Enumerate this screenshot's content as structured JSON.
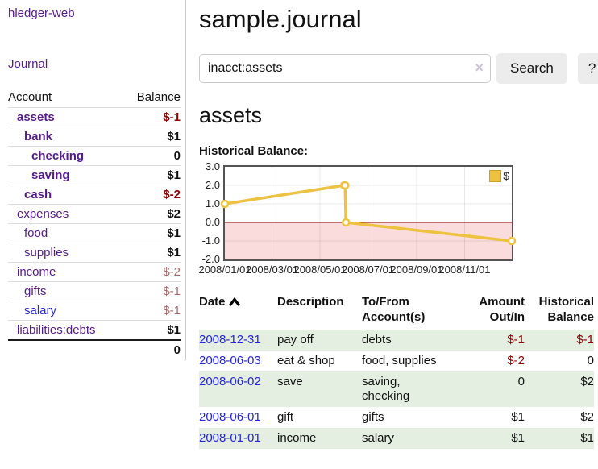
{
  "app": {
    "title": "hledger-web",
    "nav_journal": "Journal"
  },
  "sidebar": {
    "header": {
      "account": "Account",
      "balance": "Balance"
    },
    "accounts": [
      {
        "name": "assets",
        "indent": 1,
        "bold": true,
        "balance": "$-1",
        "balance_style": "negative-strong"
      },
      {
        "name": "bank",
        "indent": 2,
        "bold": true,
        "balance": "$1",
        "balance_style": "normal"
      },
      {
        "name": "checking",
        "indent": 3,
        "bold": true,
        "balance": "0",
        "balance_style": "normal"
      },
      {
        "name": "saving",
        "indent": 3,
        "bold": true,
        "balance": "$1",
        "balance_style": "normal"
      },
      {
        "name": "cash",
        "indent": 2,
        "bold": true,
        "balance": "$-2",
        "balance_style": "negative-strong"
      },
      {
        "name": "expenses",
        "indent": 1,
        "bold": false,
        "balance": "$2",
        "balance_style": "normal"
      },
      {
        "name": "food",
        "indent": 2,
        "bold": false,
        "balance": "$1",
        "balance_style": "normal"
      },
      {
        "name": "supplies",
        "indent": 2,
        "bold": false,
        "balance": "$1",
        "balance_style": "normal"
      },
      {
        "name": "income",
        "indent": 1,
        "bold": false,
        "balance": "$-2",
        "balance_style": "negative-muted"
      },
      {
        "name": "gifts",
        "indent": 2,
        "bold": false,
        "balance": "$-1",
        "balance_style": "negative-muted"
      },
      {
        "name": "salary",
        "indent": 2,
        "bold": false,
        "balance": "$-1",
        "balance_style": "negative-muted",
        "link_color": "blue"
      },
      {
        "name": "liabilities:debts",
        "indent": 1,
        "bold": false,
        "balance": "$1",
        "balance_style": "normal"
      }
    ],
    "total": "0"
  },
  "main": {
    "title": "sample.journal",
    "search": {
      "value": "inacct:assets",
      "clear_icon": "×",
      "button": "Search",
      "help_button": "?"
    },
    "account_heading": "assets",
    "chart_label": "Historical Balance:"
  },
  "chart_data": {
    "type": "line",
    "title": "Historical Balance:",
    "legend": [
      {
        "label": "$",
        "color": "#edc240"
      }
    ],
    "series": [
      {
        "name": "$",
        "x_dates": [
          "2008-01-01",
          "2008-06-01",
          "2008-06-02",
          "2008-06-03",
          "2008-12-31"
        ],
        "x_days": [
          0,
          152,
          153,
          154,
          365
        ],
        "values": [
          1,
          2,
          2,
          0,
          -1
        ]
      }
    ],
    "x_ticks": [
      {
        "day": 0,
        "label": "2008/01/01"
      },
      {
        "day": 60,
        "label": "2008/03/01"
      },
      {
        "day": 121,
        "label": "2008/05/01"
      },
      {
        "day": 182,
        "label": "2008/07/01"
      },
      {
        "day": 244,
        "label": "2008/09/01"
      },
      {
        "day": 305,
        "label": "2008/11/01"
      }
    ],
    "y_ticks": [
      {
        "v": 3,
        "label": "3.0"
      },
      {
        "v": 2,
        "label": "2.0"
      },
      {
        "v": 1,
        "label": "1.0"
      },
      {
        "v": 0,
        "label": "0.0"
      },
      {
        "v": -1,
        "label": "-1.0"
      },
      {
        "v": -2,
        "label": "-2.0"
      }
    ],
    "ylim": [
      -2,
      3
    ],
    "xlim_days": [
      0,
      365
    ],
    "grid": true,
    "negative_region_shaded": true,
    "legend_position": "top-right"
  },
  "register": {
    "columns": {
      "date": "Date",
      "description": "Description",
      "accounts": "To/From Account(s)",
      "amount": "Amount Out/In",
      "balance": "Historical Balance"
    },
    "rows": [
      {
        "date": "2008-12-31",
        "description": "pay off",
        "accounts": "debts",
        "amount": "$-1",
        "amount_neg": true,
        "balance": "$-1",
        "balance_neg": true,
        "shade": true
      },
      {
        "date": "2008-06-03",
        "description": "eat & shop",
        "accounts": "food, supplies",
        "amount": "$-2",
        "amount_neg": true,
        "balance": "0",
        "balance_neg": false,
        "shade": false
      },
      {
        "date": "2008-06-02",
        "description": "save",
        "accounts": "saving,\nchecking",
        "amount": "0",
        "amount_neg": false,
        "balance": "$2",
        "balance_neg": false,
        "shade": true
      },
      {
        "date": "2008-06-01",
        "description": "gift",
        "accounts": "gifts",
        "amount": "$1",
        "amount_neg": false,
        "balance": "$2",
        "balance_neg": false,
        "shade": false
      },
      {
        "date": "2008-01-01",
        "description": "income",
        "accounts": "salary",
        "amount": "$1",
        "amount_neg": false,
        "balance": "$1",
        "balance_neg": false,
        "shade": true
      }
    ]
  },
  "colors": {
    "link_purple": "#551a8b",
    "link_blue": "#2424dd",
    "negative_strong": "#8b0000",
    "negative_muted": "#a56868",
    "row_shade_green": "#e4efe2",
    "chart_line": "#edc240",
    "chart_negative_fill": "#fbdcdc",
    "chart_zero_line": "#8b0000",
    "button_bg": "#ececec"
  }
}
